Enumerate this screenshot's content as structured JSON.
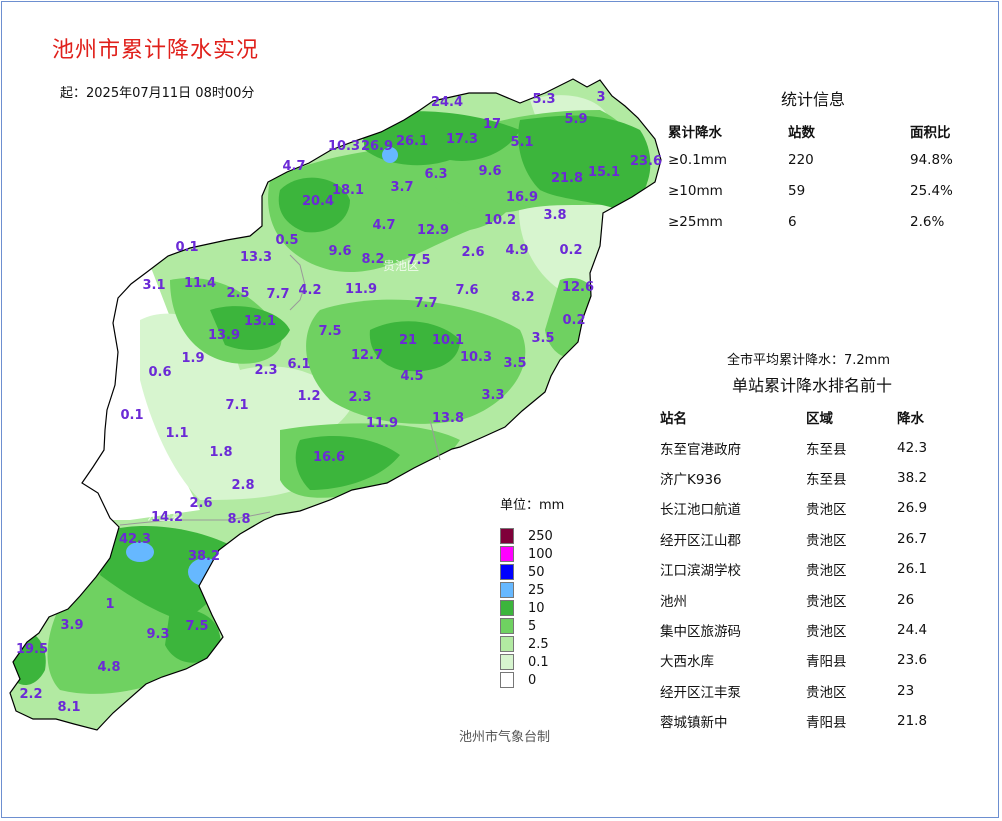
{
  "title": "池州市累计降水实况",
  "start_time": "起：2025年07月11日 08时00分",
  "colors": {
    "title": "#e0201b",
    "station_label": "#6b2ad6",
    "lt_0_1": "#ffffff",
    "r0_1": "#d7f5cf",
    "r2_5": "#b2eaa2",
    "r5": "#6fd161",
    "r10": "#3cb53c",
    "r25": "#66b8ff",
    "r50": "#0000ff",
    "r100": "#ff00ff",
    "r250": "#7f0039"
  },
  "stats": {
    "title": "统计信息",
    "headers": [
      "累计降水",
      "站数",
      "面积比"
    ],
    "rows": [
      [
        "≥0.1mm",
        "220",
        "94.8%"
      ],
      [
        "≥10mm",
        "59",
        "25.4%"
      ],
      [
        "≥25mm",
        "6",
        "2.6%"
      ]
    ]
  },
  "average": "全市平均累计降水：7.2mm",
  "ranking": {
    "title": "单站累计降水排名前十",
    "headers": [
      "站名",
      "区域",
      "降水"
    ],
    "rows": [
      [
        "东至官港政府",
        "东至县",
        "42.3"
      ],
      [
        "济广K936",
        "东至县",
        "38.2"
      ],
      [
        "长江池口航道",
        "贵池区",
        "26.9"
      ],
      [
        "经开区江山郡",
        "贵池区",
        "26.7"
      ],
      [
        "江口滨湖学校",
        "贵池区",
        "26.1"
      ],
      [
        "池州",
        "贵池区",
        "26"
      ],
      [
        "集中区旅游码",
        "贵池区",
        "24.4"
      ],
      [
        "大西水库",
        "青阳县",
        "23.6"
      ],
      [
        "经开区江丰泵",
        "贵池区",
        "23"
      ],
      [
        "蓉城镇新中",
        "青阳县",
        "21.8"
      ]
    ]
  },
  "legend": {
    "unit": "单位：mm",
    "items": [
      {
        "label": "250",
        "color": "#7f0039"
      },
      {
        "label": "100",
        "color": "#ff00ff"
      },
      {
        "label": "50",
        "color": "#0000ff"
      },
      {
        "label": "25",
        "color": "#66b8ff"
      },
      {
        "label": "10",
        "color": "#3cb53c"
      },
      {
        "label": "5",
        "color": "#6fd161"
      },
      {
        "label": "2.5",
        "color": "#b2eaa2"
      },
      {
        "label": "0.1",
        "color": "#d7f5cf"
      },
      {
        "label": "0",
        "color": "#ffffff"
      }
    ]
  },
  "district_labels": [
    "贵池区",
    "东至县"
  ],
  "station_values": [
    "24.4",
    "5.3",
    "3",
    "17",
    "5.9",
    "10.3",
    "26.9",
    "26.1",
    "17.3",
    "5.1",
    "23.6",
    "4.7",
    "6.3",
    "9.6",
    "21.8",
    "15.1",
    "18.1",
    "3.7",
    "16.9",
    "20.4",
    "10.2",
    "3.8",
    "4.7",
    "12.9",
    "0.5",
    "0.1",
    "13.3",
    "9.6",
    "8.2",
    "7.5",
    "2.6",
    "4.9",
    "0.2",
    "3.1",
    "11.4",
    "7.7",
    "4.2",
    "11.9",
    "7.6",
    "8.2",
    "12.6",
    "2.5",
    "7.7",
    "13.1",
    "13.9",
    "7.5",
    "21",
    "10.1",
    "0.2",
    "3.5",
    "1.9",
    "6.1",
    "12.7",
    "10.3",
    "3.5",
    "0.6",
    "2.3",
    "4.5",
    "1.2",
    "2.3",
    "3.3",
    "0.1",
    "7.1",
    "11.9",
    "13.8",
    "1.1",
    "1.8",
    "16.6",
    "2.8",
    "2.6",
    "14.2",
    "8.8",
    "42.3",
    "38.2",
    "1",
    "3.9",
    "9.3",
    "7.5",
    "19.5",
    "4.8",
    "2.2",
    "8.1"
  ],
  "credit": "池州市气象台制"
}
